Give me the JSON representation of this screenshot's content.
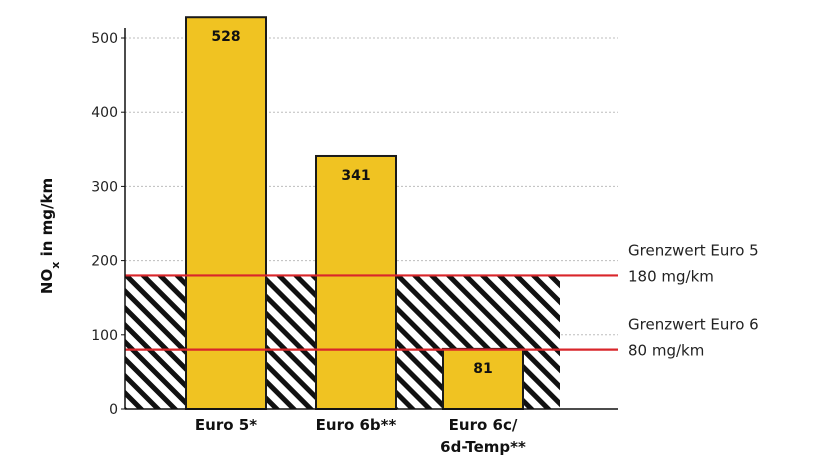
{
  "chart_data": {
    "type": "bar",
    "categories": [
      [
        "Euro 5*"
      ],
      [
        "Euro 6b**"
      ],
      [
        "Euro 6c/",
        "6d-Temp**"
      ]
    ],
    "values": [
      528,
      341,
      81
    ],
    "data_labels": [
      "528",
      "341",
      "81"
    ],
    "ylabel": {
      "main": "NO",
      "sub": "x",
      "rest": " in mg/km"
    },
    "ylim": [
      0,
      500
    ],
    "yticks": [
      0,
      100,
      200,
      300,
      400,
      500
    ],
    "grid": true,
    "limits": [
      {
        "value": 180,
        "label": "Grenzwert Euro 5",
        "sublabel": "180 mg/km"
      },
      {
        "value": 80,
        "label": "Grenzwert Euro 6",
        "sublabel": "80 mg/km"
      }
    ],
    "colors": {
      "bar": "#f0c322",
      "bar_stroke": "#1a1a1a",
      "limit_line": "#d9262b",
      "grid": "#bdbdbd",
      "axis": "#111111",
      "hatch": "#111111"
    }
  }
}
